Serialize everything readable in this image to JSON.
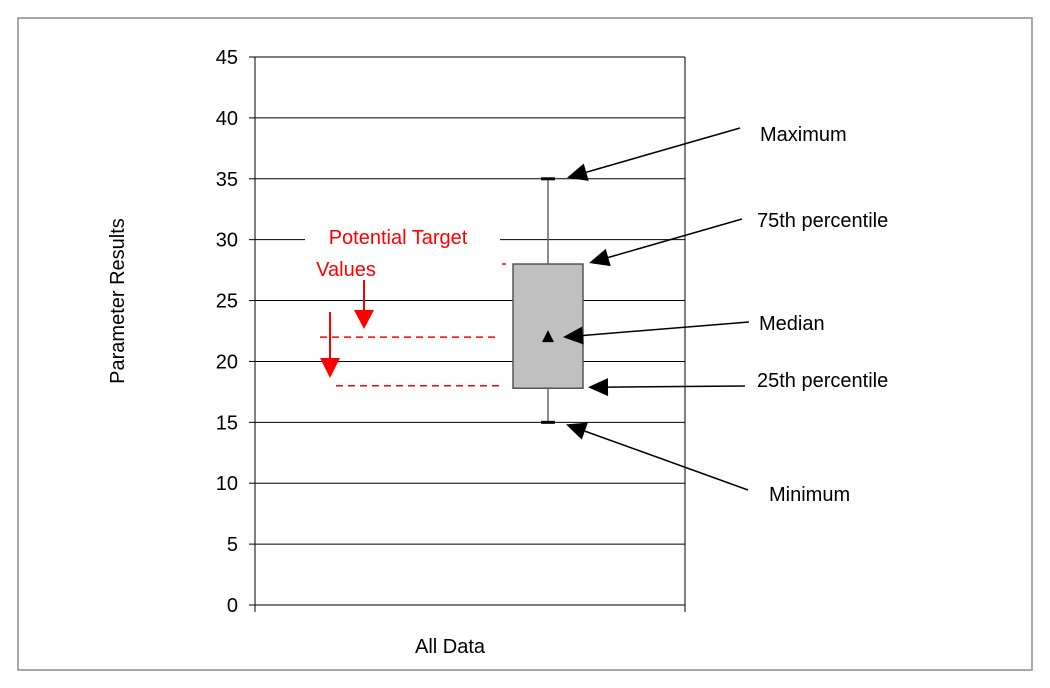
{
  "colors": {
    "frame": "#8c8c8c",
    "grid": "#000000",
    "box_fill": "#c0c0c0",
    "box_stroke": "#555555",
    "accent_red": "#ff0000",
    "text": "#000000"
  },
  "chart_data": {
    "type": "box",
    "title": "",
    "xlabel": "All Data",
    "ylabel": "Parameter Results",
    "ylim": [
      0,
      45
    ],
    "yticks": [
      0,
      5,
      10,
      15,
      20,
      25,
      30,
      35,
      40,
      45
    ],
    "grid": true,
    "categories": [
      "All Data"
    ],
    "box": {
      "min": 15,
      "q1": 17.8,
      "median": 22,
      "q3": 28,
      "max": 35
    },
    "annotations": {
      "maximum": "Maximum",
      "p75": "75th percentile",
      "median": "Median",
      "p25": "25th percentile",
      "minimum": "Minimum"
    },
    "target_label_line1": "Potential Target",
    "target_label_line2": "Values",
    "target_values": [
      22,
      18
    ]
  }
}
